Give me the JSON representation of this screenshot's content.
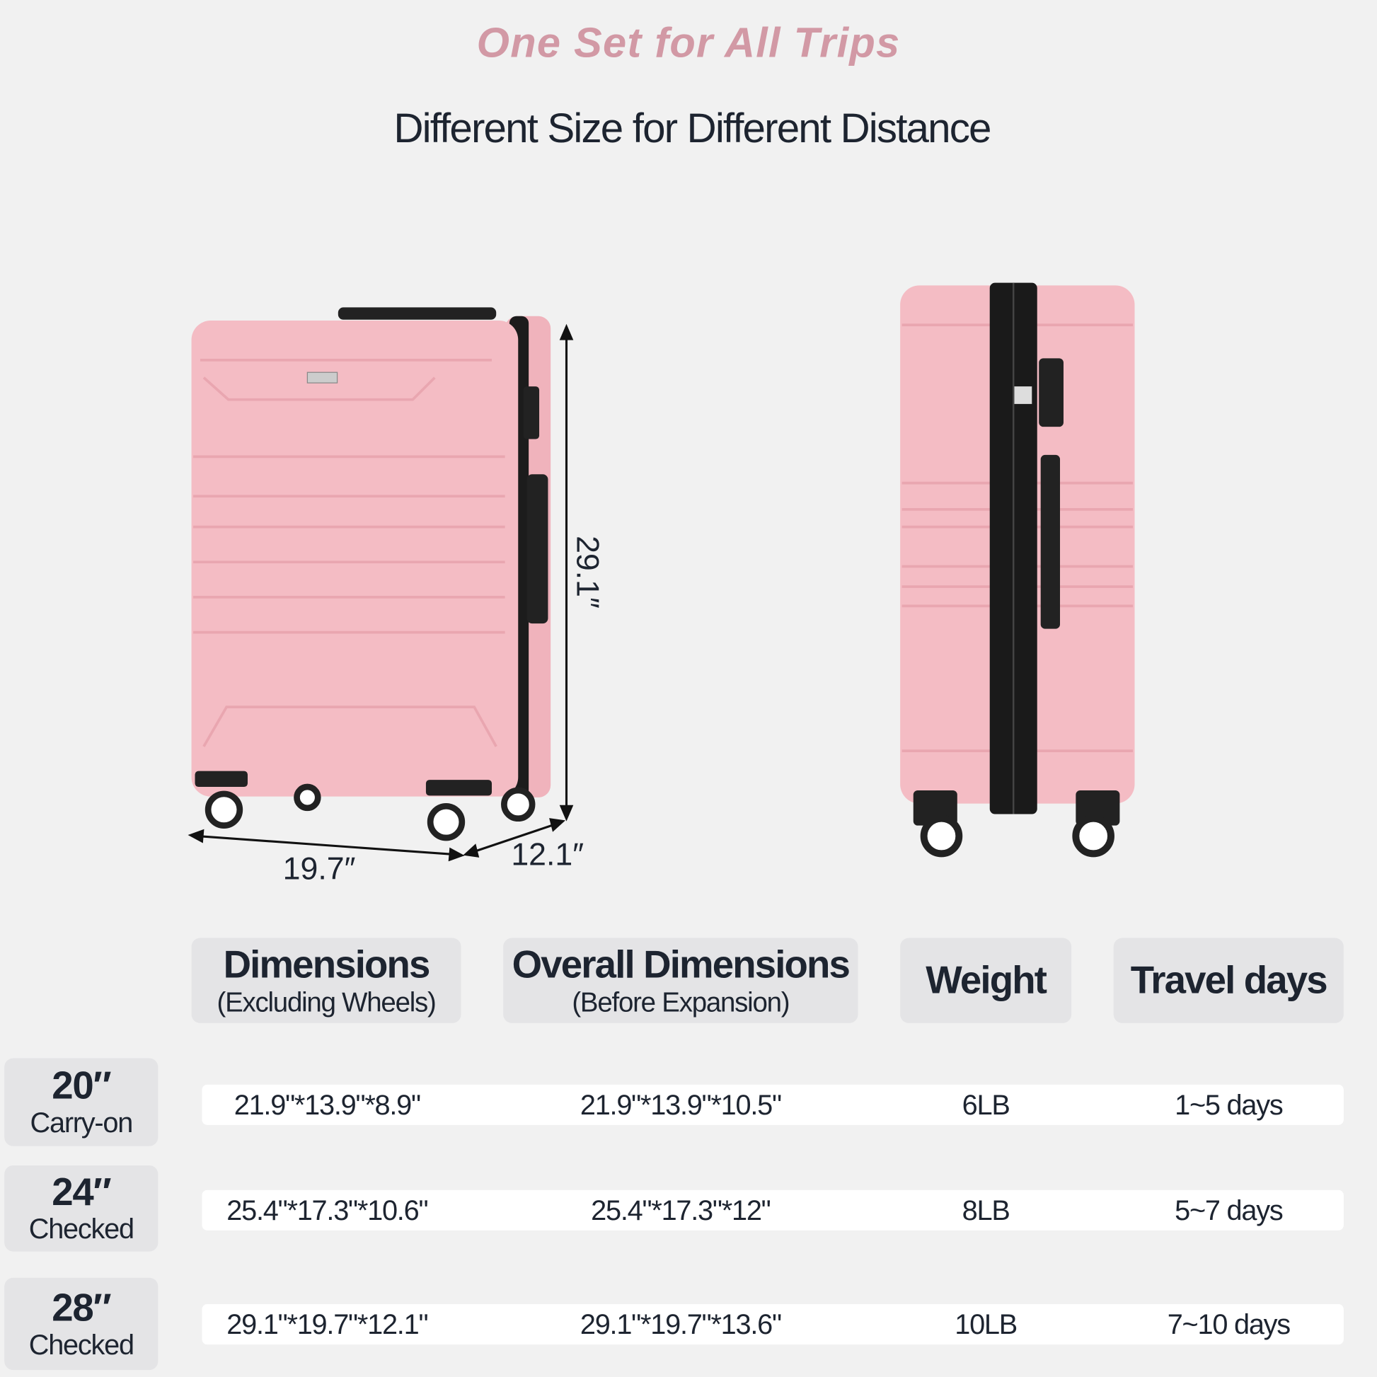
{
  "title": "One Set for All Trips",
  "subtitle": "Different Size for Different Distance",
  "dimension_labels": {
    "height": "29.1″",
    "width": "19.7″",
    "depth": "12.1″"
  },
  "colors": {
    "accent": "#d299a5",
    "suitcase": "#f4bcc4",
    "text": "#1d2430"
  },
  "table": {
    "headers": [
      {
        "main": "Dimensions",
        "sub": "(Excluding Wheels)"
      },
      {
        "main": "Overall Dimensions",
        "sub": "(Before Expansion)"
      },
      {
        "main": "Weight",
        "sub": ""
      },
      {
        "main": "Travel days",
        "sub": ""
      }
    ],
    "rows": [
      {
        "size": "20″",
        "type": "Carry-on",
        "cells": [
          "21.9\"*13.9\"*8.9\"",
          "21.9\"*13.9\"*10.5\"",
          "6LB",
          "1~5 days"
        ]
      },
      {
        "size": "24″",
        "type": "Checked",
        "cells": [
          "25.4\"*17.3\"*10.6\"",
          "25.4\"*17.3\"*12\"",
          "8LB",
          "5~7 days"
        ]
      },
      {
        "size": "28″",
        "type": "Checked",
        "cells": [
          "29.1\"*19.7\"*12.1\"",
          "29.1\"*19.7\"*13.6\"",
          "10LB",
          "7~10 days"
        ]
      }
    ]
  }
}
